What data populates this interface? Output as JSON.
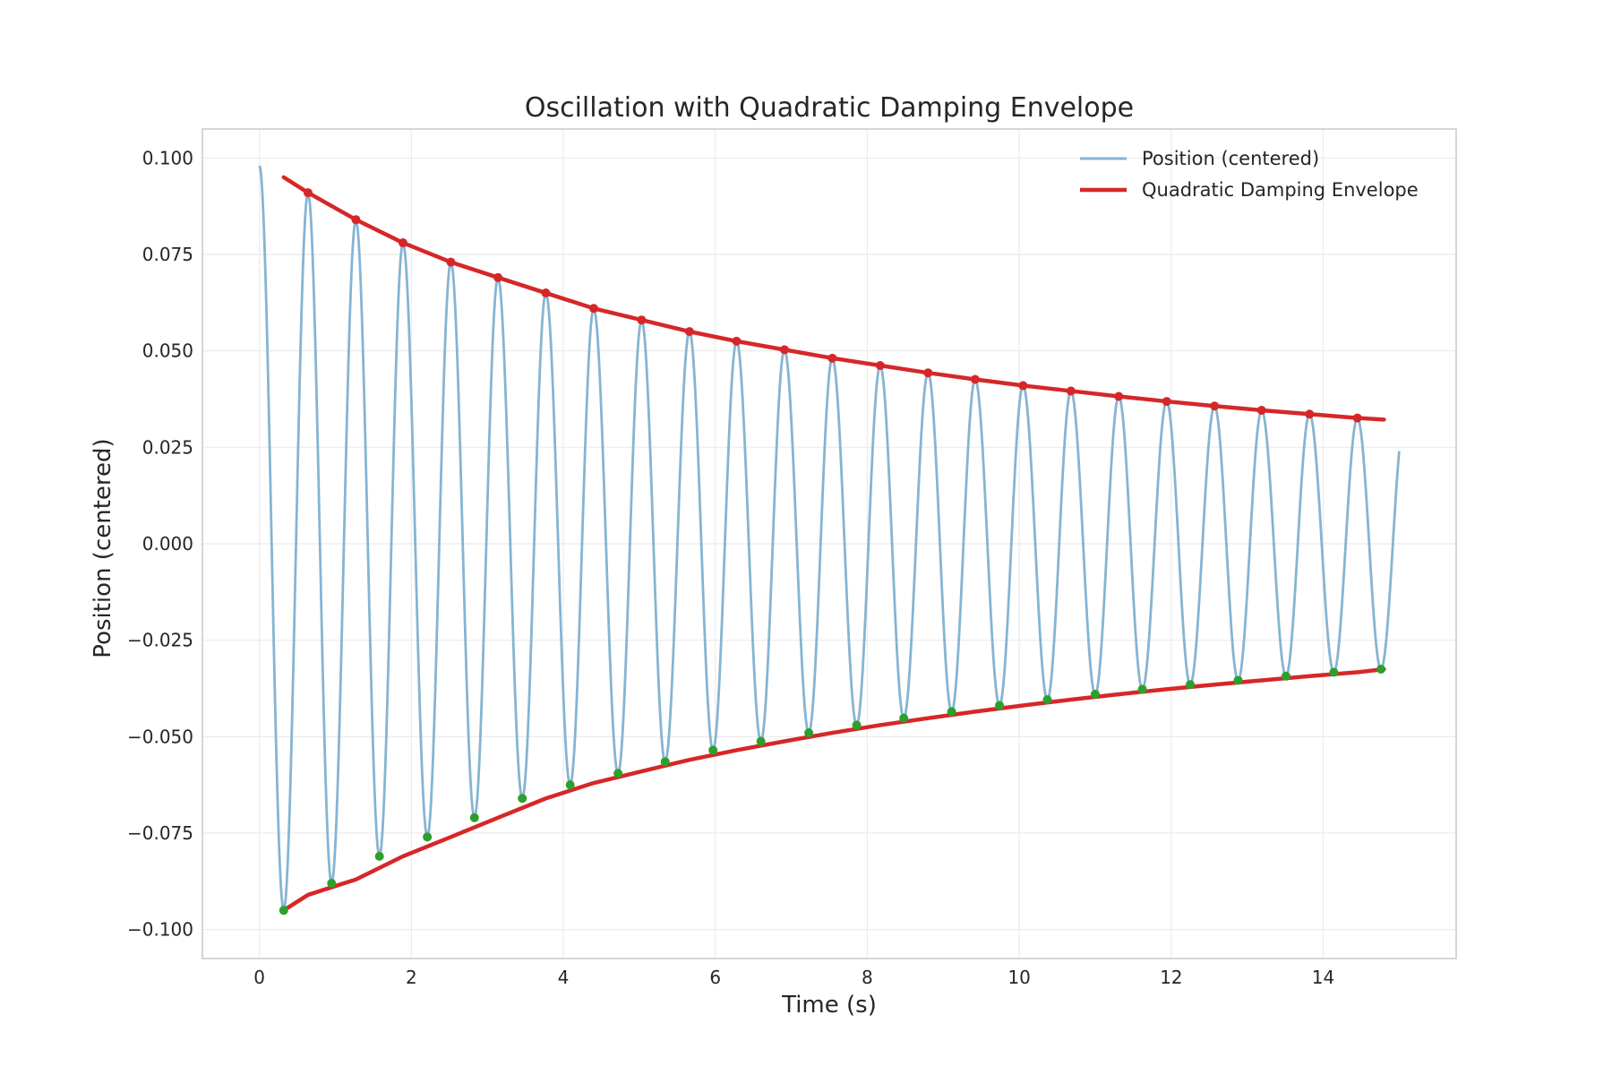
{
  "chart_data": {
    "type": "line",
    "title": "Oscillation with Quadratic Damping Envelope",
    "xlabel": "Time (s)",
    "ylabel": "Position (centered)",
    "xlim": [
      -0.75,
      15.75
    ],
    "ylim": [
      -0.1075,
      0.1075
    ],
    "xticks": [
      0,
      2,
      4,
      6,
      8,
      10,
      12,
      14
    ],
    "yticks": [
      -0.1,
      -0.075,
      -0.05,
      -0.025,
      0.0,
      0.025,
      0.05,
      0.075,
      0.1
    ],
    "ytick_labels": [
      "−0.100",
      "−0.075",
      "−0.050",
      "−0.025",
      "0.000",
      "0.025",
      "0.050",
      "0.075",
      "0.100"
    ],
    "xtick_labels": [
      "0",
      "2",
      "4",
      "6",
      "8",
      "10",
      "12",
      "14"
    ],
    "grid": true,
    "legend_position": "top-right",
    "colors": {
      "position": "#86b4d3",
      "envelope": "#d62728",
      "peaks": "#d62728",
      "troughs": "#2ca02c"
    },
    "series": [
      {
        "name": "Position (centered)",
        "kind": "oscillation",
        "x_start": 0.0,
        "x_end": 15.0,
        "initial_value": 0.098,
        "final_value": 0.01,
        "period": 0.628
      },
      {
        "name": "Quadratic Damping Envelope",
        "kind": "envelope",
        "points": [
          {
            "x": 0.32,
            "upper": 0.095,
            "lower": -0.095
          },
          {
            "x": 0.64,
            "upper": 0.091,
            "lower": -0.091
          },
          {
            "x": 1.27,
            "upper": 0.084,
            "lower": -0.087
          },
          {
            "x": 1.89,
            "upper": 0.078,
            "lower": -0.081
          },
          {
            "x": 2.52,
            "upper": 0.073,
            "lower": -0.076
          },
          {
            "x": 3.14,
            "upper": 0.069,
            "lower": -0.071
          },
          {
            "x": 3.77,
            "upper": 0.065,
            "lower": -0.066
          },
          {
            "x": 4.4,
            "upper": 0.061,
            "lower": -0.062
          },
          {
            "x": 5.03,
            "upper": 0.058,
            "lower": -0.059
          },
          {
            "x": 5.66,
            "upper": 0.055,
            "lower": -0.056
          },
          {
            "x": 6.28,
            "upper": 0.0525,
            "lower": -0.0535
          },
          {
            "x": 6.91,
            "upper": 0.0503,
            "lower": -0.0512
          },
          {
            "x": 7.54,
            "upper": 0.0481,
            "lower": -0.049
          },
          {
            "x": 8.17,
            "upper": 0.0462,
            "lower": -0.047
          },
          {
            "x": 8.8,
            "upper": 0.0443,
            "lower": -0.0452
          },
          {
            "x": 9.42,
            "upper": 0.0426,
            "lower": -0.0435
          },
          {
            "x": 10.05,
            "upper": 0.041,
            "lower": -0.0419
          },
          {
            "x": 10.68,
            "upper": 0.0396,
            "lower": -0.0404
          },
          {
            "x": 11.31,
            "upper": 0.0382,
            "lower": -0.039
          },
          {
            "x": 11.94,
            "upper": 0.0369,
            "lower": -0.0377
          },
          {
            "x": 12.57,
            "upper": 0.0357,
            "lower": -0.0365
          },
          {
            "x": 13.19,
            "upper": 0.0346,
            "lower": -0.0354
          },
          {
            "x": 13.82,
            "upper": 0.0336,
            "lower": -0.0343
          },
          {
            "x": 14.45,
            "upper": 0.0326,
            "lower": -0.0333
          },
          {
            "x": 14.8,
            "upper": 0.0322,
            "lower": -0.0325
          }
        ]
      }
    ],
    "peaks": [
      {
        "x": 0.64,
        "y": 0.091
      },
      {
        "x": 1.27,
        "y": 0.084
      },
      {
        "x": 1.89,
        "y": 0.078
      },
      {
        "x": 2.52,
        "y": 0.073
      },
      {
        "x": 3.14,
        "y": 0.069
      },
      {
        "x": 3.77,
        "y": 0.065
      },
      {
        "x": 4.4,
        "y": 0.061
      },
      {
        "x": 5.03,
        "y": 0.058
      },
      {
        "x": 5.66,
        "y": 0.055
      },
      {
        "x": 6.28,
        "y": 0.0525
      },
      {
        "x": 6.91,
        "y": 0.0503
      },
      {
        "x": 7.54,
        "y": 0.0481
      },
      {
        "x": 8.17,
        "y": 0.0462
      },
      {
        "x": 8.8,
        "y": 0.0443
      },
      {
        "x": 9.42,
        "y": 0.0426
      },
      {
        "x": 10.05,
        "y": 0.041
      },
      {
        "x": 10.68,
        "y": 0.0396
      },
      {
        "x": 11.31,
        "y": 0.0382
      },
      {
        "x": 11.94,
        "y": 0.0369
      },
      {
        "x": 12.57,
        "y": 0.0357
      },
      {
        "x": 13.19,
        "y": 0.0346
      },
      {
        "x": 13.82,
        "y": 0.0336
      },
      {
        "x": 14.45,
        "y": 0.0326
      }
    ],
    "troughs": [
      {
        "x": 0.32,
        "y": -0.095
      },
      {
        "x": 0.95,
        "y": -0.088
      },
      {
        "x": 1.58,
        "y": -0.081
      },
      {
        "x": 2.21,
        "y": -0.076
      },
      {
        "x": 2.83,
        "y": -0.071
      },
      {
        "x": 3.46,
        "y": -0.066
      },
      {
        "x": 4.09,
        "y": -0.0625
      },
      {
        "x": 4.72,
        "y": -0.0595
      },
      {
        "x": 5.34,
        "y": -0.0565
      },
      {
        "x": 5.97,
        "y": -0.0535
      },
      {
        "x": 6.6,
        "y": -0.0512
      },
      {
        "x": 7.23,
        "y": -0.049
      },
      {
        "x": 7.86,
        "y": -0.047
      },
      {
        "x": 8.48,
        "y": -0.0452
      },
      {
        "x": 9.11,
        "y": -0.0435
      },
      {
        "x": 9.74,
        "y": -0.0419
      },
      {
        "x": 10.37,
        "y": -0.0404
      },
      {
        "x": 11.0,
        "y": -0.039
      },
      {
        "x": 11.62,
        "y": -0.0377
      },
      {
        "x": 12.25,
        "y": -0.0365
      },
      {
        "x": 12.88,
        "y": -0.0354
      },
      {
        "x": 13.51,
        "y": -0.0343
      },
      {
        "x": 14.14,
        "y": -0.0333
      },
      {
        "x": 14.76,
        "y": -0.0325
      }
    ]
  }
}
